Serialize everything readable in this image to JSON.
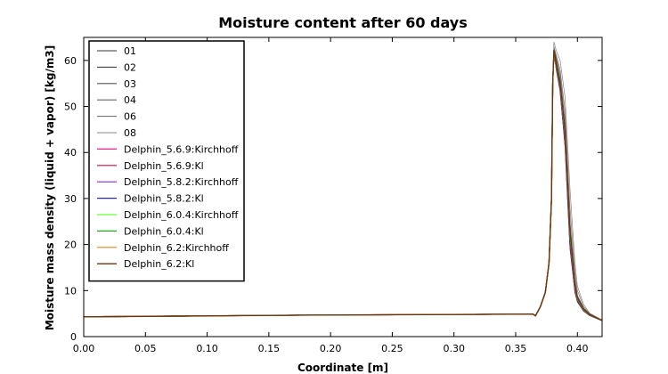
{
  "chart_data": {
    "type": "line",
    "title": "Moisture content after 60 days",
    "xlabel": "Coordinate [m]",
    "ylabel": "Moisture mass density (liquid + vapor) [kg/m3]",
    "xlim": [
      0.0,
      0.42
    ],
    "ylim": [
      0,
      65
    ],
    "xticks": [
      "0.00",
      "0.05",
      "0.10",
      "0.15",
      "0.20",
      "0.25",
      "0.30",
      "0.35",
      "0.40"
    ],
    "yticks": [
      "0",
      "10",
      "20",
      "30",
      "40",
      "50",
      "60"
    ],
    "grid": false,
    "legend_position": "upper-left",
    "series": [
      {
        "name": "01",
        "color": "#333333",
        "width": 0.7,
        "x": [
          0,
          0.05,
          0.1,
          0.2,
          0.3,
          0.364,
          0.366,
          0.37,
          0.374,
          0.377,
          0.379,
          0.38,
          0.381,
          0.383,
          0.386,
          0.39,
          0.394,
          0.398,
          0.4,
          0.405,
          0.41,
          0.42
        ],
        "y": [
          4.3,
          4.4,
          4.5,
          4.7,
          4.8,
          4.9,
          4.5,
          6.5,
          9.5,
          16,
          30,
          55,
          62.5,
          58.5,
          53.5,
          41,
          19,
          9.5,
          7.5,
          5.5,
          4.6,
          3.5
        ]
      },
      {
        "name": "02",
        "color": "#444444",
        "width": 0.7,
        "x": [
          0,
          0.05,
          0.1,
          0.2,
          0.3,
          0.364,
          0.366,
          0.37,
          0.374,
          0.377,
          0.379,
          0.38,
          0.381,
          0.383,
          0.386,
          0.39,
          0.394,
          0.398,
          0.4,
          0.405,
          0.41,
          0.42
        ],
        "y": [
          4.3,
          4.4,
          4.5,
          4.7,
          4.8,
          4.9,
          4.5,
          6.6,
          9.7,
          16.5,
          31,
          56,
          63,
          59.5,
          55,
          43,
          21,
          10.5,
          8,
          5.8,
          4.7,
          3.5
        ]
      },
      {
        "name": "03",
        "color": "#555555",
        "width": 0.7,
        "x": [
          0,
          0.05,
          0.1,
          0.2,
          0.3,
          0.364,
          0.366,
          0.37,
          0.374,
          0.377,
          0.379,
          0.38,
          0.381,
          0.383,
          0.386,
          0.39,
          0.394,
          0.398,
          0.4,
          0.405,
          0.41,
          0.42
        ],
        "y": [
          4.3,
          4.4,
          4.5,
          4.7,
          4.8,
          4.9,
          4.5,
          6.5,
          9.6,
          16.2,
          30.5,
          55.5,
          62.8,
          60,
          56,
          45,
          23,
          11.5,
          8.5,
          6,
          4.8,
          3.5
        ]
      },
      {
        "name": "04",
        "color": "#666666",
        "width": 0.7,
        "x": [
          0,
          0.05,
          0.1,
          0.2,
          0.3,
          0.364,
          0.366,
          0.37,
          0.374,
          0.377,
          0.379,
          0.38,
          0.381,
          0.383,
          0.386,
          0.39,
          0.394,
          0.398,
          0.4,
          0.405,
          0.41,
          0.42
        ],
        "y": [
          4.3,
          4.4,
          4.5,
          4.7,
          4.8,
          4.9,
          4.5,
          6.5,
          9.6,
          16.2,
          30.5,
          55.5,
          62.8,
          60.5,
          57,
          47,
          25,
          12.5,
          9,
          6.2,
          4.9,
          3.5
        ]
      },
      {
        "name": "06",
        "color": "#777777",
        "width": 0.7,
        "x": [
          0,
          0.05,
          0.1,
          0.2,
          0.3,
          0.364,
          0.366,
          0.37,
          0.374,
          0.377,
          0.379,
          0.38,
          0.381,
          0.383,
          0.386,
          0.39,
          0.394,
          0.398,
          0.4,
          0.405,
          0.41,
          0.42
        ],
        "y": [
          4.3,
          4.4,
          4.5,
          4.7,
          4.8,
          4.9,
          4.5,
          6.5,
          9.6,
          16.2,
          30.5,
          55.5,
          63,
          61,
          58,
          49,
          28,
          14,
          10,
          6.5,
          5,
          3.6
        ]
      },
      {
        "name": "08",
        "color": "#888888",
        "width": 0.7,
        "x": [
          0,
          0.05,
          0.1,
          0.2,
          0.3,
          0.364,
          0.366,
          0.37,
          0.374,
          0.377,
          0.379,
          0.38,
          0.381,
          0.383,
          0.386,
          0.39,
          0.394,
          0.398,
          0.4,
          0.405,
          0.41,
          0.42
        ],
        "y": [
          4.3,
          4.4,
          4.5,
          4.7,
          4.8,
          4.9,
          4.5,
          6.5,
          9.7,
          16.5,
          31,
          56,
          64,
          62,
          60,
          52,
          32,
          16,
          11,
          7,
          5.1,
          3.6
        ]
      },
      {
        "name": "Delphin_5.6.9:Kirchhoff",
        "color": "#ff1f8e",
        "width": 1.2,
        "x": [
          0,
          0.05,
          0.1,
          0.2,
          0.3,
          0.364,
          0.366,
          0.37,
          0.374,
          0.377,
          0.379,
          0.38,
          0.381,
          0.383,
          0.386,
          0.39,
          0.394,
          0.398,
          0.4,
          0.405,
          0.41,
          0.42
        ],
        "y": [
          4.3,
          4.4,
          4.5,
          4.7,
          4.8,
          4.9,
          4.5,
          6.5,
          9.6,
          16,
          30,
          55,
          62,
          58,
          53.5,
          42,
          20,
          10,
          7.8,
          5.6,
          4.6,
          3.5
        ]
      },
      {
        "name": "Delphin_5.6.9:Kl",
        "color": "#cc1040",
        "width": 1.2,
        "x": [
          0,
          0.05,
          0.1,
          0.2,
          0.3,
          0.364,
          0.366,
          0.37,
          0.374,
          0.377,
          0.379,
          0.38,
          0.381,
          0.383,
          0.386,
          0.39,
          0.394,
          0.398,
          0.4,
          0.405,
          0.41,
          0.42
        ],
        "y": [
          4.3,
          4.4,
          4.5,
          4.7,
          4.8,
          4.9,
          4.5,
          6.5,
          9.6,
          16,
          30,
          55,
          62,
          58,
          53.5,
          42,
          20,
          10,
          7.8,
          5.6,
          4.6,
          3.5
        ]
      },
      {
        "name": "Delphin_5.8.2:Kirchhoff",
        "color": "#7f2fd0",
        "width": 1.2,
        "x": [
          0,
          0.05,
          0.1,
          0.2,
          0.3,
          0.364,
          0.366,
          0.37,
          0.374,
          0.377,
          0.379,
          0.38,
          0.381,
          0.383,
          0.386,
          0.39,
          0.394,
          0.398,
          0.4,
          0.405,
          0.41,
          0.42
        ],
        "y": [
          4.3,
          4.4,
          4.5,
          4.7,
          4.8,
          4.9,
          4.5,
          6.5,
          9.6,
          16,
          30,
          55,
          62,
          58.2,
          54,
          43,
          21,
          10.5,
          8,
          5.7,
          4.6,
          3.5
        ]
      },
      {
        "name": "Delphin_5.8.2:Kl",
        "color": "#2a2aa0",
        "width": 1.2,
        "x": [
          0,
          0.05,
          0.1,
          0.2,
          0.3,
          0.364,
          0.366,
          0.37,
          0.374,
          0.377,
          0.379,
          0.38,
          0.381,
          0.383,
          0.386,
          0.39,
          0.394,
          0.398,
          0.4,
          0.405,
          0.41,
          0.42
        ],
        "y": [
          4.3,
          4.4,
          4.5,
          4.7,
          4.8,
          4.9,
          4.5,
          6.5,
          9.6,
          16,
          30,
          55,
          62,
          58.2,
          54,
          43,
          21,
          10.5,
          8,
          5.7,
          4.6,
          3.5
        ]
      },
      {
        "name": "Delphin_6.0.4:Kirchhoff",
        "color": "#66ff33",
        "width": 1.2,
        "x": [
          0,
          0.05,
          0.1,
          0.2,
          0.3,
          0.364,
          0.366,
          0.37,
          0.374,
          0.377,
          0.379,
          0.38,
          0.381,
          0.383,
          0.386,
          0.39,
          0.394,
          0.398,
          0.4,
          0.405,
          0.41,
          0.42
        ],
        "y": [
          4.3,
          4.4,
          4.5,
          4.7,
          4.8,
          4.9,
          4.5,
          6.5,
          9.6,
          16,
          30,
          55,
          62,
          58.5,
          54.5,
          44,
          22,
          11,
          8.2,
          5.8,
          4.7,
          3.5
        ]
      },
      {
        "name": "Delphin_6.0.4:Kl",
        "color": "#22aa22",
        "width": 1.2,
        "x": [
          0,
          0.05,
          0.1,
          0.2,
          0.3,
          0.364,
          0.366,
          0.37,
          0.374,
          0.377,
          0.379,
          0.38,
          0.381,
          0.383,
          0.386,
          0.39,
          0.394,
          0.398,
          0.4,
          0.405,
          0.41,
          0.42
        ],
        "y": [
          4.3,
          4.4,
          4.5,
          4.7,
          4.8,
          4.9,
          4.5,
          6.5,
          9.6,
          16,
          30,
          55,
          62,
          58.5,
          54.5,
          44,
          22,
          11,
          8.2,
          5.8,
          4.7,
          3.5
        ]
      },
      {
        "name": "Delphin_6.2:Kirchhoff",
        "color": "#e6891a",
        "width": 1.2,
        "x": [
          0,
          0.05,
          0.1,
          0.2,
          0.3,
          0.364,
          0.366,
          0.37,
          0.374,
          0.377,
          0.379,
          0.38,
          0.381,
          0.383,
          0.386,
          0.39,
          0.394,
          0.398,
          0.4,
          0.405,
          0.41,
          0.42
        ],
        "y": [
          4.3,
          4.4,
          4.5,
          4.7,
          4.8,
          4.9,
          4.5,
          6.5,
          9.6,
          16,
          30,
          55,
          62.2,
          59,
          55,
          45,
          23,
          11.5,
          8.5,
          6,
          4.8,
          3.5
        ]
      },
      {
        "name": "Delphin_6.2:Kl",
        "color": "#6b3410",
        "width": 1.4,
        "x": [
          0,
          0.05,
          0.1,
          0.2,
          0.3,
          0.364,
          0.366,
          0.37,
          0.374,
          0.377,
          0.379,
          0.38,
          0.381,
          0.383,
          0.386,
          0.39,
          0.394,
          0.398,
          0.4,
          0.405,
          0.41,
          0.42
        ],
        "y": [
          4.3,
          4.4,
          4.5,
          4.7,
          4.8,
          4.9,
          4.5,
          6.5,
          9.6,
          16,
          30,
          55,
          62.2,
          59,
          55,
          45,
          23,
          11.5,
          8.5,
          6,
          4.8,
          3.5
        ]
      }
    ]
  }
}
